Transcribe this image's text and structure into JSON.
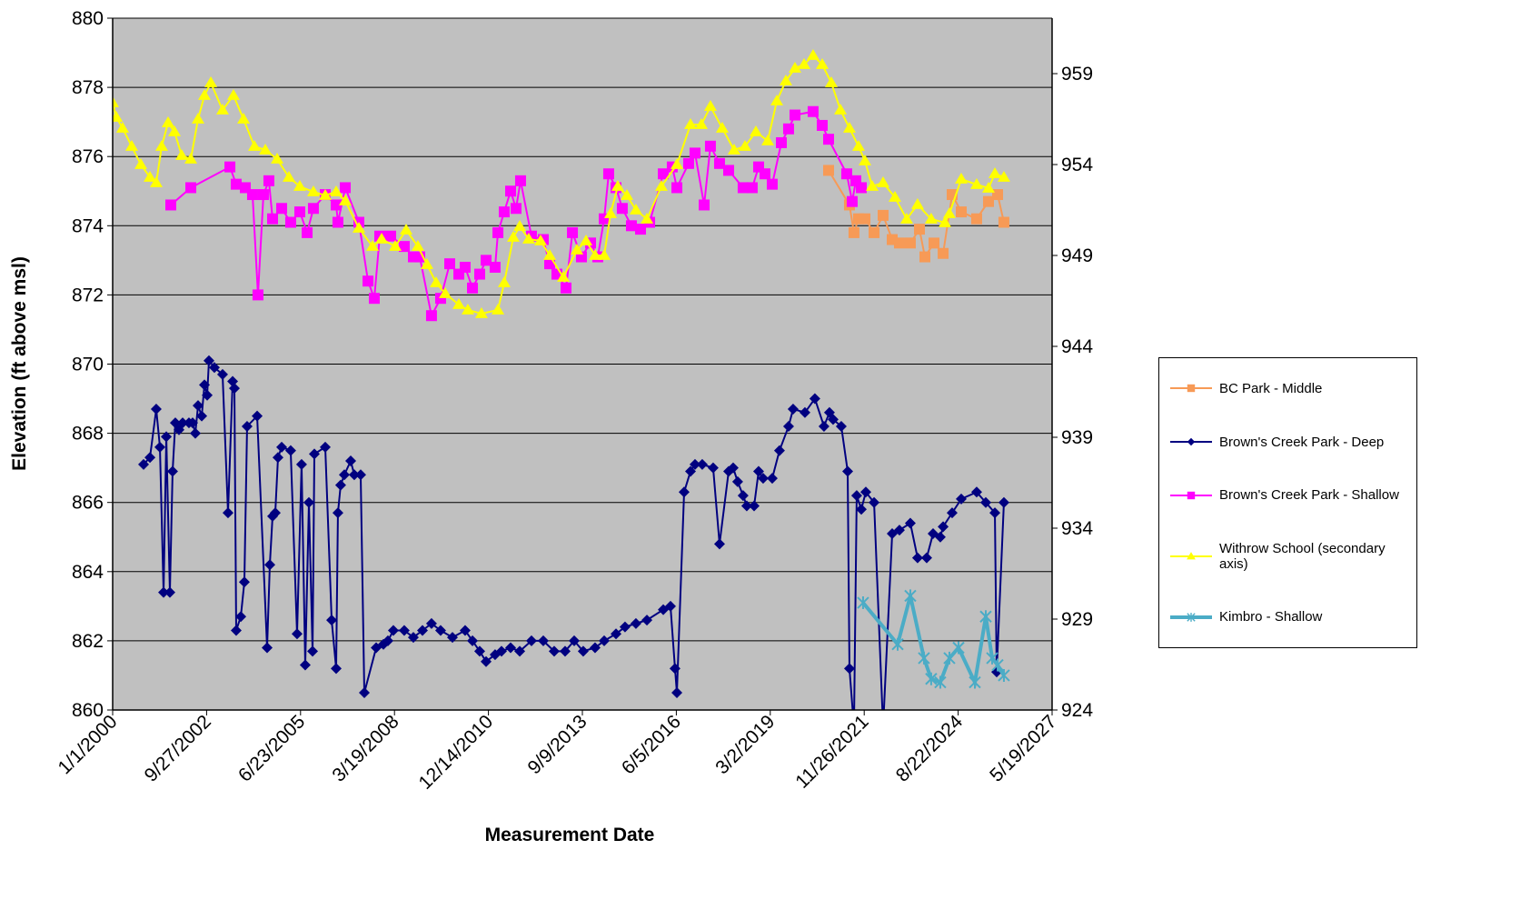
{
  "chart_data": {
    "type": "line",
    "x_label": "Measurement Date",
    "y_label": "Elevation (ft above msl)",
    "grid": true,
    "legend": "right",
    "plot_background": "#c0c0c0",
    "xlim": [
      36526,
      46526
    ],
    "xticks": [
      {
        "value": 36526,
        "label": "1/1/2000"
      },
      {
        "value": 37526,
        "label": "9/27/2002"
      },
      {
        "value": 38526,
        "label": "6/23/2005"
      },
      {
        "value": 39526,
        "label": "3/19/2008"
      },
      {
        "value": 40526,
        "label": "12/14/2010"
      },
      {
        "value": 41526,
        "label": "9/9/2013"
      },
      {
        "value": 42526,
        "label": "6/5/2016"
      },
      {
        "value": 43526,
        "label": "3/2/2019"
      },
      {
        "value": 44526,
        "label": "11/26/2021"
      },
      {
        "value": 45526,
        "label": "8/22/2024"
      },
      {
        "value": 46526,
        "label": "5/19/2027"
      }
    ],
    "ylim": [
      860,
      880
    ],
    "yticks": [
      860,
      862,
      864,
      866,
      868,
      870,
      872,
      874,
      876,
      878,
      880
    ],
    "y2lim": [
      924,
      962.05
    ],
    "y2ticks": [
      924,
      929,
      934,
      939,
      944,
      949,
      954,
      959
    ],
    "series": [
      {
        "name": "BC Park - Middle",
        "color": "#f79a56",
        "marker": "square",
        "axis": "y",
        "x": [
          44147,
          44369,
          44417,
          44466,
          44534,
          44631,
          44727,
          44824,
          44901,
          45017,
          45114,
          45172,
          45269,
          45366,
          45462,
          45559,
          45723,
          45849,
          45946,
          46013
        ],
        "values": [
          875.6,
          874.6,
          873.8,
          874.2,
          874.2,
          873.8,
          874.3,
          873.6,
          873.5,
          873.5,
          873.9,
          873.1,
          873.5,
          873.2,
          874.9,
          874.4,
          874.2,
          874.7,
          874.9,
          874.1
        ]
      },
      {
        "name": "Brown's Creek Park - Deep",
        "color": "#000080",
        "marker": "diamond",
        "axis": "y",
        "x": [
          36855,
          36923,
          36990,
          37029,
          37068,
          37097,
          37135,
          37164,
          37193,
          37232,
          37271,
          37338,
          37377,
          37406,
          37435,
          37474,
          37503,
          37532,
          37551,
          37609,
          37696,
          37754,
          37803,
          37822,
          37841,
          37890,
          37928,
          37957,
          38064,
          38170,
          38199,
          38228,
          38257,
          38286,
          38325,
          38421,
          38489,
          38537,
          38576,
          38615,
          38654,
          38673,
          38789,
          38857,
          38905,
          38924,
          38953,
          38992,
          39060,
          39098,
          39166,
          39205,
          39331,
          39408,
          39456,
          39514,
          39630,
          39727,
          39824,
          39920,
          40017,
          40143,
          40278,
          40356,
          40433,
          40501,
          40597,
          40665,
          40762,
          40859,
          40984,
          41110,
          41226,
          41342,
          41439,
          41535,
          41661,
          41758,
          41884,
          41980,
          42096,
          42213,
          42387,
          42464,
          42512,
          42532,
          42609,
          42677,
          42725,
          42802,
          42918,
          42986,
          43083,
          43131,
          43179,
          43237,
          43276,
          43354,
          43402,
          43450,
          43547,
          43624,
          43721,
          43769,
          43895,
          44001,
          44098,
          44156,
          44195,
          44282,
          44350,
          44369,
          44417,
          44446,
          44495,
          44543,
          44631,
          44727,
          44824,
          44901,
          45017,
          45094,
          45191,
          45259,
          45336,
          45366,
          45462,
          45559,
          45723,
          45820,
          45917,
          45936,
          46013
        ],
        "values": [
          867.1,
          867.3,
          868.7,
          867.6,
          863.4,
          867.9,
          863.4,
          866.9,
          868.3,
          868.1,
          868.3,
          868.3,
          868.3,
          868.0,
          868.8,
          868.5,
          869.4,
          869.1,
          870.1,
          869.9,
          869.7,
          865.7,
          869.5,
          869.3,
          862.3,
          862.7,
          863.7,
          868.2,
          868.5,
          861.8,
          864.2,
          865.6,
          865.7,
          867.3,
          867.6,
          867.5,
          862.2,
          867.1,
          861.3,
          866.0,
          861.7,
          867.4,
          867.6,
          862.6,
          861.2,
          865.7,
          866.5,
          866.8,
          867.2,
          866.8,
          866.8,
          860.5,
          861.8,
          861.9,
          862.0,
          862.3,
          862.3,
          862.1,
          862.3,
          862.5,
          862.3,
          862.1,
          862.3,
          862.0,
          861.7,
          861.4,
          861.6,
          861.7,
          861.8,
          861.7,
          862.0,
          862.0,
          861.7,
          861.7,
          862.0,
          861.7,
          861.8,
          862.0,
          862.2,
          862.4,
          862.5,
          862.6,
          862.9,
          863.0,
          861.2,
          860.5,
          866.3,
          866.9,
          867.1,
          867.1,
          867.0,
          864.8,
          866.9,
          867.0,
          866.6,
          866.2,
          865.9,
          865.9,
          866.9,
          866.7,
          866.7,
          867.5,
          868.2,
          868.7,
          868.6,
          869.0,
          868.2,
          868.6,
          868.4,
          868.2,
          866.9,
          861.2,
          859.5,
          866.2,
          865.8,
          866.3,
          866.0,
          859.5,
          865.1,
          865.2,
          865.4,
          864.4,
          864.4,
          865.1,
          865.0,
          865.3,
          865.7,
          866.1,
          866.3,
          866.0,
          865.7,
          861.1,
          866.0
        ]
      },
      {
        "name": "Brown's Creek Park - Shallow",
        "color": "#ff00ff",
        "marker": "square",
        "axis": "y",
        "x": [
          37145,
          37358,
          37774,
          37841,
          37938,
          38015,
          38073,
          38131,
          38189,
          38228,
          38325,
          38421,
          38518,
          38596,
          38663,
          38789,
          38905,
          38924,
          39002,
          39147,
          39244,
          39311,
          39369,
          39485,
          39630,
          39727,
          39795,
          39920,
          40017,
          40114,
          40211,
          40278,
          40356,
          40433,
          40501,
          40597,
          40627,
          40694,
          40762,
          40820,
          40868,
          40984,
          41110,
          41178,
          41255,
          41352,
          41420,
          41516,
          41613,
          41690,
          41758,
          41806,
          41884,
          41951,
          42048,
          42145,
          42242,
          42387,
          42483,
          42532,
          42657,
          42725,
          42822,
          42889,
          42986,
          43083,
          43237,
          43334,
          43402,
          43470,
          43547,
          43644,
          43721,
          43789,
          43982,
          44079,
          44147,
          44340,
          44398,
          44437,
          44495
        ],
        "values": [
          874.6,
          875.1,
          875.7,
          875.2,
          875.1,
          874.9,
          872.0,
          874.9,
          875.3,
          874.2,
          874.5,
          874.1,
          874.4,
          873.8,
          874.5,
          874.9,
          874.6,
          874.1,
          875.1,
          874.1,
          872.4,
          871.9,
          873.7,
          873.7,
          873.4,
          873.1,
          873.1,
          871.4,
          871.9,
          872.9,
          872.6,
          872.8,
          872.2,
          872.6,
          873.0,
          872.8,
          873.8,
          874.4,
          875.0,
          874.5,
          875.3,
          873.7,
          873.6,
          872.9,
          872.6,
          872.2,
          873.8,
          873.1,
          873.5,
          873.1,
          874.2,
          875.5,
          875.1,
          874.5,
          874.0,
          873.9,
          874.1,
          875.5,
          875.7,
          875.1,
          875.8,
          876.1,
          874.6,
          876.3,
          875.8,
          875.6,
          875.1,
          875.1,
          875.7,
          875.5,
          875.2,
          876.4,
          876.8,
          877.2,
          877.3,
          876.9,
          876.5,
          875.5,
          874.7,
          875.3,
          875.1
        ]
      },
      {
        "name": "Withrow School (secondary axis)",
        "color": "#ffff00",
        "marker": "triangle",
        "axis": "y2",
        "x": [
          36526,
          36565,
          36632,
          36729,
          36826,
          36923,
          36990,
          37048,
          37116,
          37184,
          37261,
          37358,
          37435,
          37503,
          37571,
          37696,
          37812,
          37919,
          38035,
          38151,
          38277,
          38402,
          38518,
          38663,
          38789,
          38905,
          39002,
          39147,
          39292,
          39389,
          39534,
          39650,
          39775,
          39872,
          39969,
          40066,
          40211,
          40307,
          40452,
          40627,
          40694,
          40791,
          40859,
          40955,
          41081,
          41178,
          41323,
          41468,
          41565,
          41661,
          41758,
          41826,
          41903,
          42000,
          42096,
          42213,
          42367,
          42532,
          42677,
          42793,
          42889,
          43015,
          43141,
          43257,
          43373,
          43499,
          43596,
          43692,
          43789,
          43886,
          43982,
          44079,
          44176,
          44273,
          44369,
          44466,
          44534,
          44611,
          44727,
          44853,
          44978,
          45094,
          45239,
          45385,
          45433,
          45559,
          45723,
          45849,
          45917,
          46013
        ],
        "values": [
          957.4,
          956.6,
          956.0,
          955.0,
          954.0,
          953.3,
          953.0,
          955.0,
          956.3,
          955.8,
          954.5,
          954.3,
          956.5,
          957.8,
          958.5,
          957.0,
          957.8,
          956.5,
          955.0,
          954.8,
          954.3,
          953.3,
          952.8,
          952.5,
          952.3,
          952.5,
          952.0,
          950.5,
          949.5,
          949.9,
          949.5,
          950.4,
          949.5,
          948.5,
          947.5,
          946.9,
          946.3,
          946.0,
          945.8,
          946.0,
          947.5,
          950.0,
          950.6,
          949.9,
          949.8,
          949.0,
          947.8,
          949.3,
          949.8,
          949.0,
          949.0,
          951.3,
          952.8,
          952.3,
          951.5,
          951.0,
          952.8,
          954.0,
          956.2,
          956.2,
          957.2,
          956.0,
          954.8,
          955.0,
          955.8,
          955.3,
          957.5,
          958.6,
          959.3,
          959.5,
          960.0,
          959.5,
          958.5,
          957.0,
          956.0,
          955.0,
          954.2,
          952.8,
          953.0,
          952.2,
          951.0,
          951.8,
          951.0,
          950.8,
          951.3,
          953.2,
          952.9,
          952.7,
          953.5,
          953.3
        ]
      },
      {
        "name": "Kimbro - Shallow",
        "color": "#4bacc6",
        "marker": "star",
        "axis": "y",
        "x": [
          44514,
          44882,
          45017,
          45162,
          45239,
          45336,
          45433,
          45530,
          45704,
          45820,
          45888,
          45946,
          46013
        ],
        "values": [
          863.1,
          861.9,
          863.3,
          861.5,
          860.9,
          860.8,
          861.5,
          861.8,
          860.8,
          862.7,
          861.5,
          861.3,
          861.0
        ]
      }
    ]
  }
}
